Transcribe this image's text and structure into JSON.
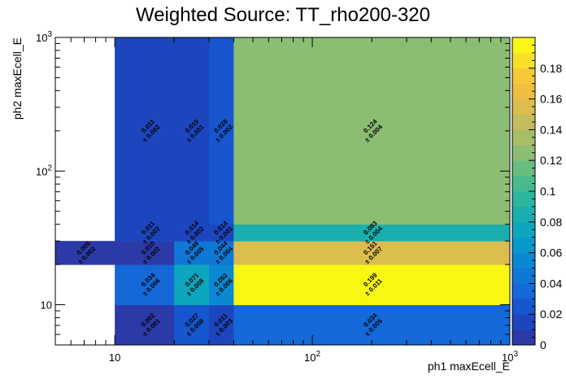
{
  "chart_data": {
    "type": "heatmap",
    "title": "Weighted Source: TT_rho200-320",
    "xlabel": "ph1 maxEcell_E",
    "ylabel": "ph2 maxEcell_E",
    "x_scale": "log",
    "y_scale": "log",
    "xlim": [
      5,
      1000
    ],
    "ylim": [
      5,
      1000
    ],
    "x_tick_labels": [
      "10",
      "10",
      "10"
    ],
    "x_tick_exponents": [
      "",
      "2",
      "3"
    ],
    "y_tick_labels": [
      "10",
      "10",
      "10"
    ],
    "y_tick_exponents": [
      "",
      "2",
      "3"
    ],
    "x_bin_edges": [
      5,
      10,
      20,
      30,
      40,
      1000
    ],
    "y_bin_edges": [
      5,
      10,
      20,
      30,
      40,
      1000
    ],
    "zlim": [
      0,
      0.2
    ],
    "z_tick_labels": [
      "0",
      "0.02",
      "0.04",
      "0.06",
      "0.08",
      "0.1",
      "0.12",
      "0.14",
      "0.16",
      "0.18"
    ],
    "grid": false,
    "cells": [
      {
        "x": [
          10,
          20
        ],
        "y": [
          5,
          10
        ],
        "value": 0.002,
        "text": "0.002",
        "err": "± 0.001"
      },
      {
        "x": [
          20,
          30
        ],
        "y": [
          5,
          10
        ],
        "value": 0.027,
        "text": "0.027",
        "err": "± 0.008"
      },
      {
        "x": [
          30,
          40
        ],
        "y": [
          5,
          10
        ],
        "value": 0.011,
        "text": "0.011",
        "err": "± 0.003"
      },
      {
        "x": [
          40,
          1000
        ],
        "y": [
          5,
          10
        ],
        "value": 0.034,
        "text": "0.034",
        "err": "± 0.005"
      },
      {
        "x": [
          10,
          20
        ],
        "y": [
          10,
          20
        ],
        "value": 0.034,
        "text": "0.034",
        "err": "± 0.006"
      },
      {
        "x": [
          20,
          30
        ],
        "y": [
          10,
          20
        ],
        "value": 0.071,
        "text": "0.071",
        "err": "± 0.008"
      },
      {
        "x": [
          30,
          40
        ],
        "y": [
          10,
          20
        ],
        "value": 0.052,
        "text": "0.052",
        "err": "± 0.006"
      },
      {
        "x": [
          40,
          1000
        ],
        "y": [
          10,
          20
        ],
        "value": 0.199,
        "text": "0.199",
        "err": "± 0.011"
      },
      {
        "x": [
          5,
          10
        ],
        "y": [
          20,
          30
        ],
        "value": 0.005,
        "text": "0.005",
        "err": "± 0.002"
      },
      {
        "x": [
          10,
          20
        ],
        "y": [
          20,
          30
        ],
        "value": 0.01,
        "text": "0.010",
        "err": "± 0.002"
      },
      {
        "x": [
          20,
          30
        ],
        "y": [
          20,
          30
        ],
        "value": 0.049,
        "text": "0.049",
        "err": "± 0.005"
      },
      {
        "x": [
          30,
          40
        ],
        "y": [
          20,
          30
        ],
        "value": 0.044,
        "text": "0.044",
        "err": "± 0.004"
      },
      {
        "x": [
          40,
          1000
        ],
        "y": [
          20,
          30
        ],
        "value": 0.151,
        "text": "0.151",
        "err": "± 0.007"
      },
      {
        "x": [
          10,
          20
        ],
        "y": [
          30,
          40
        ],
        "value": 0.011,
        "text": "0.011",
        "err": "± 0.002"
      },
      {
        "x": [
          20,
          30
        ],
        "y": [
          30,
          40
        ],
        "value": 0.014,
        "text": "0.014",
        "err": "± 0.002"
      },
      {
        "x": [
          30,
          40
        ],
        "y": [
          30,
          40
        ],
        "value": 0.014,
        "text": "0.014",
        "err": "± 0.001"
      },
      {
        "x": [
          40,
          1000
        ],
        "y": [
          30,
          40
        ],
        "value": 0.083,
        "text": "0.083",
        "err": "± 0.004"
      },
      {
        "x": [
          10,
          20
        ],
        "y": [
          40,
          1000
        ],
        "value": 0.011,
        "text": "0.011",
        "err": "± 0.002"
      },
      {
        "x": [
          20,
          30
        ],
        "y": [
          40,
          1000
        ],
        "value": 0.015,
        "text": "0.015",
        "err": "± 0.001"
      },
      {
        "x": [
          30,
          40
        ],
        "y": [
          40,
          1000
        ],
        "value": 0.028,
        "text": "0.028",
        "err": "± 0.002"
      },
      {
        "x": [
          40,
          1000
        ],
        "y": [
          40,
          1000
        ],
        "value": 0.124,
        "text": "0.124",
        "err": "± 0.004"
      }
    ],
    "palette": [
      "#2c3aa8",
      "#1d46be",
      "#1656ce",
      "#1468d8",
      "#0f78d6",
      "#0b88d2",
      "#0799c9",
      "#0ea6bd",
      "#1aaeae",
      "#2cb59f",
      "#47bb8e",
      "#69bd7e",
      "#8bbd72",
      "#a8bd67",
      "#c4bd5c",
      "#dbbd4e",
      "#efbe3e",
      "#f7c93a",
      "#f8df2a",
      "#f8f714"
    ]
  }
}
